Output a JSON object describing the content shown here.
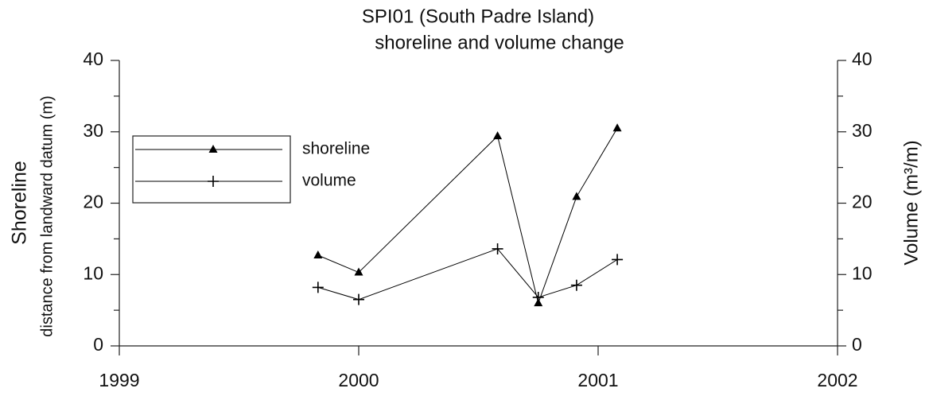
{
  "chart_data": {
    "type": "line",
    "title": "SPI01 (South Padre Island)",
    "subtitle": "shoreline and volume change",
    "y_label": "Shoreline",
    "y_label_sub": "distance from landward datum (m)",
    "y2_label": "Volume (m³/m)",
    "x": [
      1999.83,
      2000.0,
      2000.58,
      2000.75,
      2000.91,
      2001.08
    ],
    "xlim": [
      1999,
      2002
    ],
    "xticks": [
      1999,
      2000,
      2001,
      2002
    ],
    "ylim": [
      0,
      40
    ],
    "yticks": [
      0,
      10,
      20,
      30,
      40
    ],
    "yminorticks": [
      5,
      15,
      25,
      35
    ],
    "y2lim": [
      0,
      40
    ],
    "y2ticks": [
      0,
      10,
      20,
      30,
      40
    ],
    "y2minorticks": [
      5,
      15,
      25,
      35
    ],
    "series": [
      {
        "name": "shoreline",
        "color": "#000000",
        "marker": "triangle",
        "values": [
          12.7,
          10.3,
          29.4,
          6.0,
          20.9,
          30.5
        ]
      },
      {
        "name": "volume",
        "color": "#000000",
        "marker": "plus",
        "axis": "y2",
        "values": [
          8.2,
          6.5,
          13.6,
          6.8,
          8.5,
          12.1
        ]
      }
    ],
    "legend": "upper left"
  }
}
